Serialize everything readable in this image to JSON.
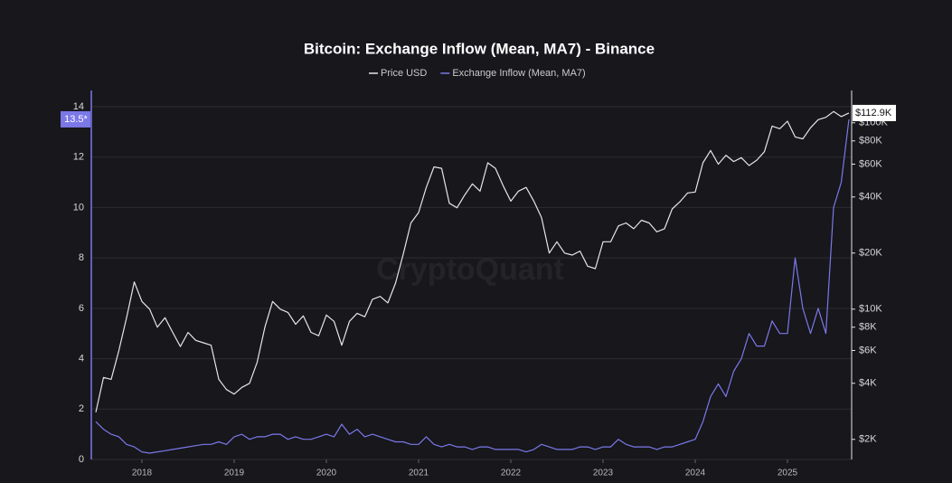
{
  "chart_data": {
    "type": "line",
    "title": "Bitcoin: Exchange Inflow (Mean, MA7) - Binance",
    "watermark": "CryptoQuant",
    "legend": "top",
    "grid": true,
    "categories": [
      null,
      null,
      null,
      null,
      null,
      null,
      "2018",
      null,
      null,
      null,
      null,
      null,
      null,
      null,
      null,
      null,
      null,
      null,
      "2019",
      null,
      null,
      null,
      null,
      null,
      null,
      null,
      null,
      null,
      null,
      null,
      "2020",
      null,
      null,
      null,
      null,
      null,
      null,
      null,
      null,
      null,
      null,
      null,
      "2021",
      null,
      null,
      null,
      null,
      null,
      null,
      null,
      null,
      null,
      null,
      null,
      "2022",
      null,
      null,
      null,
      null,
      null,
      null,
      null,
      null,
      null,
      null,
      null,
      "2023",
      null,
      null,
      null,
      null,
      null,
      null,
      null,
      null,
      null,
      null,
      null,
      "2024",
      null,
      null,
      null,
      null,
      null,
      null,
      null,
      null,
      null,
      null,
      null,
      "2025",
      null,
      null,
      null,
      null,
      null,
      null,
      null,
      null
    ],
    "ylim": [
      0,
      14
    ],
    "yticks": [
      0,
      2,
      4,
      6,
      8,
      10,
      12,
      14
    ],
    "y2lim": [
      1560,
      122000
    ],
    "y2log": true,
    "y2ticks": [
      {
        "value": 2000,
        "label": "$2K"
      },
      {
        "value": 4000,
        "label": "$4K"
      },
      {
        "value": 6000,
        "label": "$6K"
      },
      {
        "value": 8000,
        "label": "$8K"
      },
      {
        "value": 10000,
        "label": "$10K"
      },
      {
        "value": 20000,
        "label": "$20K"
      },
      {
        "value": 40000,
        "label": "$40K"
      },
      {
        "value": 60000,
        "label": "$60K"
      },
      {
        "value": 80000,
        "label": "$80K"
      },
      {
        "value": 100000,
        "label": "$100K"
      }
    ],
    "series": [
      {
        "name": "Price USD",
        "color": "#e6e6e6",
        "axis": "y2",
        "values": [
          2800,
          4300,
          4200,
          6000,
          9000,
          14000,
          11000,
          10000,
          8000,
          9000,
          7500,
          6300,
          7500,
          6800,
          6600,
          6400,
          4200,
          3700,
          3500,
          3800,
          4000,
          5200,
          8000,
          11000,
          10000,
          9600,
          8300,
          9200,
          7500,
          7200,
          9300,
          8600,
          6400,
          8600,
          9500,
          9100,
          11300,
          11700,
          10800,
          13800,
          19700,
          29000,
          33000,
          45000,
          58000,
          57000,
          37000,
          35000,
          41000,
          47000,
          43000,
          61000,
          57000,
          46000,
          38000,
          43000,
          45000,
          38000,
          31000,
          20000,
          23000,
          20000,
          19500,
          20500,
          17000,
          16500,
          23000,
          23000,
          28000,
          29000,
          27000,
          30000,
          29000,
          26000,
          27000,
          34500,
          37700,
          42000,
          42500,
          61000,
          71000,
          60000,
          67000,
          62000,
          65000,
          59000,
          63000,
          70000,
          96000,
          93000,
          102000,
          84000,
          82000,
          94000,
          104000,
          107000,
          115000,
          108000,
          112900
        ],
        "value_labels": [
          null,
          null,
          null,
          null,
          null,
          null,
          null,
          null,
          null,
          null,
          null,
          null,
          null,
          null,
          null,
          null,
          null,
          null,
          null,
          null,
          null,
          null,
          null,
          null,
          null,
          null,
          null,
          null,
          null,
          null,
          null,
          null,
          null,
          null,
          null,
          null,
          null,
          null,
          null,
          null,
          null,
          null,
          null,
          null,
          null,
          null,
          null,
          null,
          null,
          null,
          null,
          null,
          null,
          null,
          null,
          null,
          null,
          null,
          null,
          null,
          null,
          null,
          null,
          null,
          null,
          null,
          null,
          null,
          null,
          null,
          null,
          null,
          null,
          null,
          null,
          null,
          null,
          null,
          null,
          null,
          null,
          null,
          null,
          null,
          null,
          null,
          null,
          null,
          null,
          null,
          null,
          null,
          null,
          null,
          null,
          null,
          null,
          null,
          "$112.9K"
        ]
      },
      {
        "name": "Exchange Inflow (Mean, MA7)",
        "color": "#7b78e8",
        "axis": "y",
        "values": [
          1.5,
          1.2,
          1.0,
          0.9,
          0.6,
          0.5,
          0.3,
          0.25,
          0.3,
          0.35,
          0.4,
          0.45,
          0.5,
          0.55,
          0.6,
          0.6,
          0.7,
          0.6,
          0.9,
          1.0,
          0.8,
          0.9,
          0.9,
          1.0,
          1.0,
          0.8,
          0.9,
          0.8,
          0.8,
          0.9,
          1.0,
          0.9,
          1.4,
          1.0,
          1.2,
          0.9,
          1.0,
          0.9,
          0.8,
          0.7,
          0.7,
          0.6,
          0.6,
          0.9,
          0.6,
          0.5,
          0.6,
          0.5,
          0.5,
          0.4,
          0.5,
          0.5,
          0.4,
          0.4,
          0.4,
          0.4,
          0.3,
          0.4,
          0.6,
          0.5,
          0.4,
          0.4,
          0.4,
          0.5,
          0.5,
          0.4,
          0.5,
          0.5,
          0.8,
          0.6,
          0.5,
          0.5,
          0.5,
          0.4,
          0.5,
          0.5,
          0.6,
          0.7,
          0.8,
          1.5,
          2.5,
          3.0,
          2.5,
          3.5,
          4.0,
          5.0,
          4.5,
          4.5,
          5.5,
          5.0,
          5.0,
          8.0,
          6.0,
          5.0,
          6.0,
          5.0,
          10.0,
          11.0,
          13.5
        ],
        "value_labels": [
          null,
          null,
          null,
          null,
          null,
          null,
          null,
          null,
          null,
          null,
          null,
          null,
          null,
          null,
          null,
          null,
          null,
          null,
          null,
          null,
          null,
          null,
          null,
          null,
          null,
          null,
          null,
          null,
          null,
          null,
          null,
          null,
          null,
          null,
          null,
          null,
          null,
          null,
          null,
          null,
          null,
          null,
          null,
          null,
          null,
          null,
          null,
          null,
          null,
          null,
          null,
          null,
          null,
          null,
          null,
          null,
          null,
          null,
          null,
          null,
          null,
          null,
          null,
          null,
          null,
          null,
          null,
          null,
          null,
          null,
          null,
          null,
          null,
          null,
          null,
          null,
          null,
          null,
          null,
          null,
          null,
          null,
          null,
          null,
          null,
          null,
          null,
          null,
          null,
          null,
          null,
          null,
          null,
          null,
          null,
          null,
          null,
          null,
          "13.5*"
        ]
      }
    ]
  }
}
